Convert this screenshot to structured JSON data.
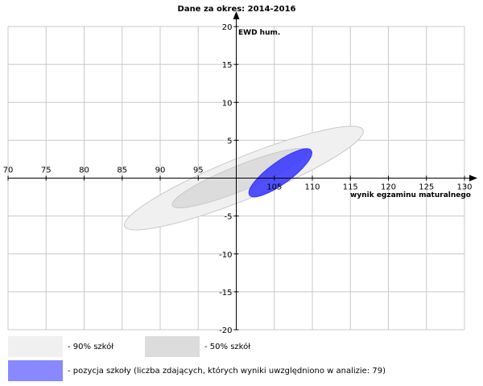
{
  "chart_data": {
    "type": "scatter",
    "title": "Dane za okres: 2014-2016",
    "xlabel": "wynik egzaminu maturalnego",
    "ylabel": "EWD hum.",
    "xlim": [
      70,
      130
    ],
    "ylim": [
      -20,
      20
    ],
    "x_ticks": [
      "70",
      "75",
      "80",
      "85",
      "90",
      "95",
      "105",
      "110",
      "115",
      "120",
      "125",
      "130"
    ],
    "y_ticks": [
      "20",
      "15",
      "10",
      "5",
      "-5",
      "-10",
      "-15",
      "-20"
    ],
    "grid": true,
    "ellipses": [
      {
        "name": "- 90% szkół",
        "center": [
          101.0,
          0.0
        ],
        "semi_x": 16.9,
        "semi_y": 2.75,
        "angle_deg": 22,
        "color": "#f0f0f0",
        "stroke": "#c8c8c8",
        "opacity": 1
      },
      {
        "name": "- 50% szkół",
        "center": [
          100.5,
          0.0
        ],
        "semi_x": 9.6,
        "semi_y": 1.65,
        "angle_deg": 22,
        "color": "#dcdcdc",
        "stroke": "#c8c8c8",
        "opacity": 1
      },
      {
        "name": "- pozycja szkoły (liczba zdających, których wyniki uwzględniono w analizie: 79)",
        "center": [
          105.8,
          0.7
        ],
        "semi_x": 5.0,
        "semi_y": 1.45,
        "angle_deg": 36,
        "color": "#3333ff",
        "stroke": "#3333ff",
        "opacity": 0.85
      }
    ],
    "legend": [
      {
        "label": "- 90% szkół",
        "color": "#f0f0f0"
      },
      {
        "label": "- 50% szkół",
        "color": "#dcdcdc"
      },
      {
        "label": "- pozycja szkoły (liczba zdających, których wyniki uwzględniono w analizie: 79)",
        "color": "#8888ff"
      }
    ]
  }
}
